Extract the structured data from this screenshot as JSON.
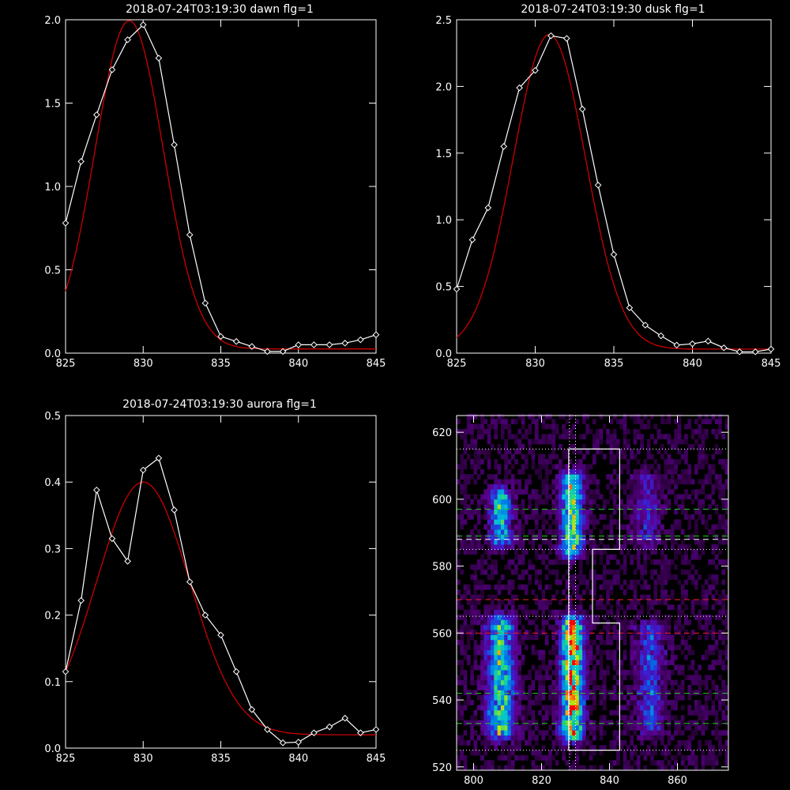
{
  "colors": {
    "background": "#000000",
    "axes": "#ffffff",
    "observed": "#ffffff",
    "fit": "#cc0000",
    "guide_green": "#22cc22",
    "guide_red": "#ee2222",
    "heatmap_low": "#2a0030",
    "heatmap_high": "#ff0000"
  },
  "chart_data": [
    {
      "type": "line",
      "title": "2018-07-24T03:19:30 dawn flg=1",
      "xlim": [
        825,
        845
      ],
      "ylim": [
        0,
        2.0
      ],
      "xticks": [
        825,
        830,
        835,
        840,
        845
      ],
      "yticks": [
        0.0,
        0.5,
        1.0,
        1.5,
        2.0
      ],
      "xtick_labels": [
        "825",
        "830",
        "835",
        "840",
        "845"
      ],
      "ytick_labels": [
        "0.0",
        "0.5",
        "1.0",
        "1.5",
        "2.0"
      ],
      "series": [
        {
          "role": "observed",
          "marker": "diamond",
          "x": [
            825,
            826,
            827,
            828,
            829,
            830,
            831,
            832,
            833,
            834,
            835,
            836,
            837,
            838,
            839,
            840,
            841,
            842,
            843,
            844,
            845
          ],
          "y": [
            0.78,
            1.15,
            1.43,
            1.7,
            1.88,
            1.97,
            1.77,
            1.25,
            0.71,
            0.3,
            0.1,
            0.07,
            0.04,
            0.01,
            0.01,
            0.05,
            0.05,
            0.05,
            0.06,
            0.08,
            0.11
          ]
        },
        {
          "role": "fit",
          "curve": "gaussian",
          "amplitude": 1.97,
          "center": 829.1,
          "sigma": 2.2,
          "offset": 0.025
        }
      ]
    },
    {
      "type": "line",
      "title": "2018-07-24T03:19:30 dusk flg=1",
      "xlim": [
        825,
        845
      ],
      "ylim": [
        0,
        2.5
      ],
      "xticks": [
        825,
        830,
        835,
        840,
        845
      ],
      "yticks": [
        0.0,
        0.5,
        1.0,
        1.5,
        2.0,
        2.5
      ],
      "xtick_labels": [
        "825",
        "830",
        "835",
        "840",
        "845"
      ],
      "ytick_labels": [
        "0.0",
        "0.5",
        "1.0",
        "1.5",
        "2.0",
        "2.5"
      ],
      "series": [
        {
          "role": "observed",
          "marker": "diamond",
          "x": [
            825,
            826,
            827,
            828,
            829,
            830,
            831,
            832,
            833,
            834,
            835,
            836,
            837,
            838,
            839,
            840,
            841,
            842,
            843,
            844,
            845
          ],
          "y": [
            0.48,
            0.85,
            1.09,
            1.55,
            1.99,
            2.12,
            2.38,
            2.36,
            1.83,
            1.26,
            0.74,
            0.34,
            0.21,
            0.13,
            0.06,
            0.07,
            0.09,
            0.04,
            0.01,
            0.01,
            0.03
          ]
        },
        {
          "role": "fit",
          "curve": "gaussian",
          "amplitude": 2.36,
          "center": 830.9,
          "sigma": 2.3,
          "offset": 0.03
        }
      ]
    },
    {
      "type": "line",
      "title": "2018-07-24T03:19:30 aurora flg=1",
      "xlim": [
        825,
        845
      ],
      "ylim": [
        0,
        0.5
      ],
      "xticks": [
        825,
        830,
        835,
        840,
        845
      ],
      "yticks": [
        0.0,
        0.1,
        0.2,
        0.3,
        0.4,
        0.5
      ],
      "xtick_labels": [
        "825",
        "830",
        "835",
        "840",
        "845"
      ],
      "ytick_labels": [
        "0.0",
        "0.1",
        "0.2",
        "0.3",
        "0.4",
        "0.5"
      ],
      "series": [
        {
          "role": "observed",
          "marker": "diamond",
          "x": [
            825,
            826,
            827,
            828,
            829,
            830,
            831,
            832,
            833,
            834,
            835,
            836,
            837,
            838,
            839,
            840,
            841,
            842,
            843,
            844,
            845
          ],
          "y": [
            0.115,
            0.222,
            0.388,
            0.315,
            0.281,
            0.418,
            0.436,
            0.358,
            0.25,
            0.2,
            0.17,
            0.115,
            0.058,
            0.028,
            0.008,
            0.009,
            0.023,
            0.032,
            0.045,
            0.023,
            0.028
          ]
        },
        {
          "role": "fit",
          "curve": "gaussian",
          "amplitude": 0.38,
          "center": 830.0,
          "sigma": 3.0,
          "offset": 0.02
        }
      ]
    },
    {
      "type": "heatmap",
      "xlim": [
        795,
        875
      ],
      "ylim": [
        519,
        625
      ],
      "xticks": [
        800,
        820,
        840,
        860
      ],
      "yticks": [
        520,
        540,
        560,
        580,
        600,
        620
      ],
      "xtick_labels": [
        "800",
        "820",
        "840",
        "860"
      ],
      "ytick_labels": [
        "520",
        "540",
        "560",
        "580",
        "600",
        "620"
      ],
      "colormap": "rainbow",
      "blobs": [
        {
          "x_center": 808,
          "x_width": 4,
          "y_from": 588,
          "y_to": 600,
          "peak": 0.6
        },
        {
          "x_center": 829,
          "x_width": 4,
          "y_from": 585,
          "y_to": 605,
          "peak": 0.75
        },
        {
          "x_center": 851,
          "x_width": 5,
          "y_from": 588,
          "y_to": 605,
          "peak": 0.25
        },
        {
          "x_center": 808,
          "x_width": 5,
          "y_from": 530,
          "y_to": 562,
          "peak": 0.65
        },
        {
          "x_center": 829,
          "x_width": 4,
          "y_from": 530,
          "y_to": 562,
          "peak": 0.95
        },
        {
          "x_center": 852,
          "x_width": 5,
          "y_from": 532,
          "y_to": 560,
          "peak": 0.35
        }
      ],
      "guides": {
        "vertical_dotted_x": [
          828.2,
          830.0
        ],
        "horizontal_dotted_y": [
          525,
          565,
          585,
          615
        ],
        "green_dashed_y": [
          597,
          589,
          542,
          533
        ],
        "white_dashed_y": [
          588
        ],
        "red_dashed_y": [
          570,
          560
        ],
        "region_outline": [
          [
            828,
            615
          ],
          [
            843,
            615
          ],
          [
            843,
            585
          ],
          [
            835,
            585
          ],
          [
            835,
            563
          ],
          [
            843,
            563
          ],
          [
            843,
            525
          ],
          [
            828,
            525
          ]
        ]
      }
    }
  ]
}
